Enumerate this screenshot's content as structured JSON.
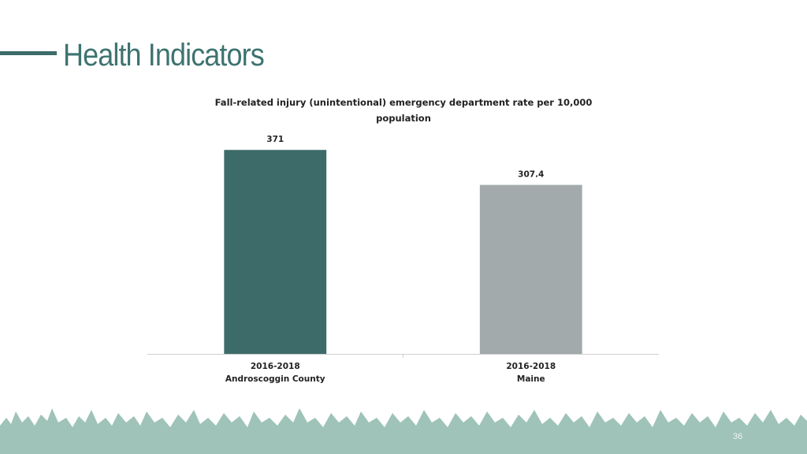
{
  "slide": {
    "title": "Health Indicators",
    "page_number": "36"
  },
  "chart_data": {
    "type": "bar",
    "title": "Fall-related injury (unintentional) emergency department rate per 10,000 population",
    "categories": [
      [
        "2016-2018",
        "Androscoggin County"
      ],
      [
        "2016-2018",
        "Maine"
      ]
    ],
    "values": [
      371,
      307.4
    ],
    "colors": [
      "#3d6b69",
      "#a2aaab"
    ],
    "ylim": [
      0,
      400
    ],
    "data_labels": true
  }
}
